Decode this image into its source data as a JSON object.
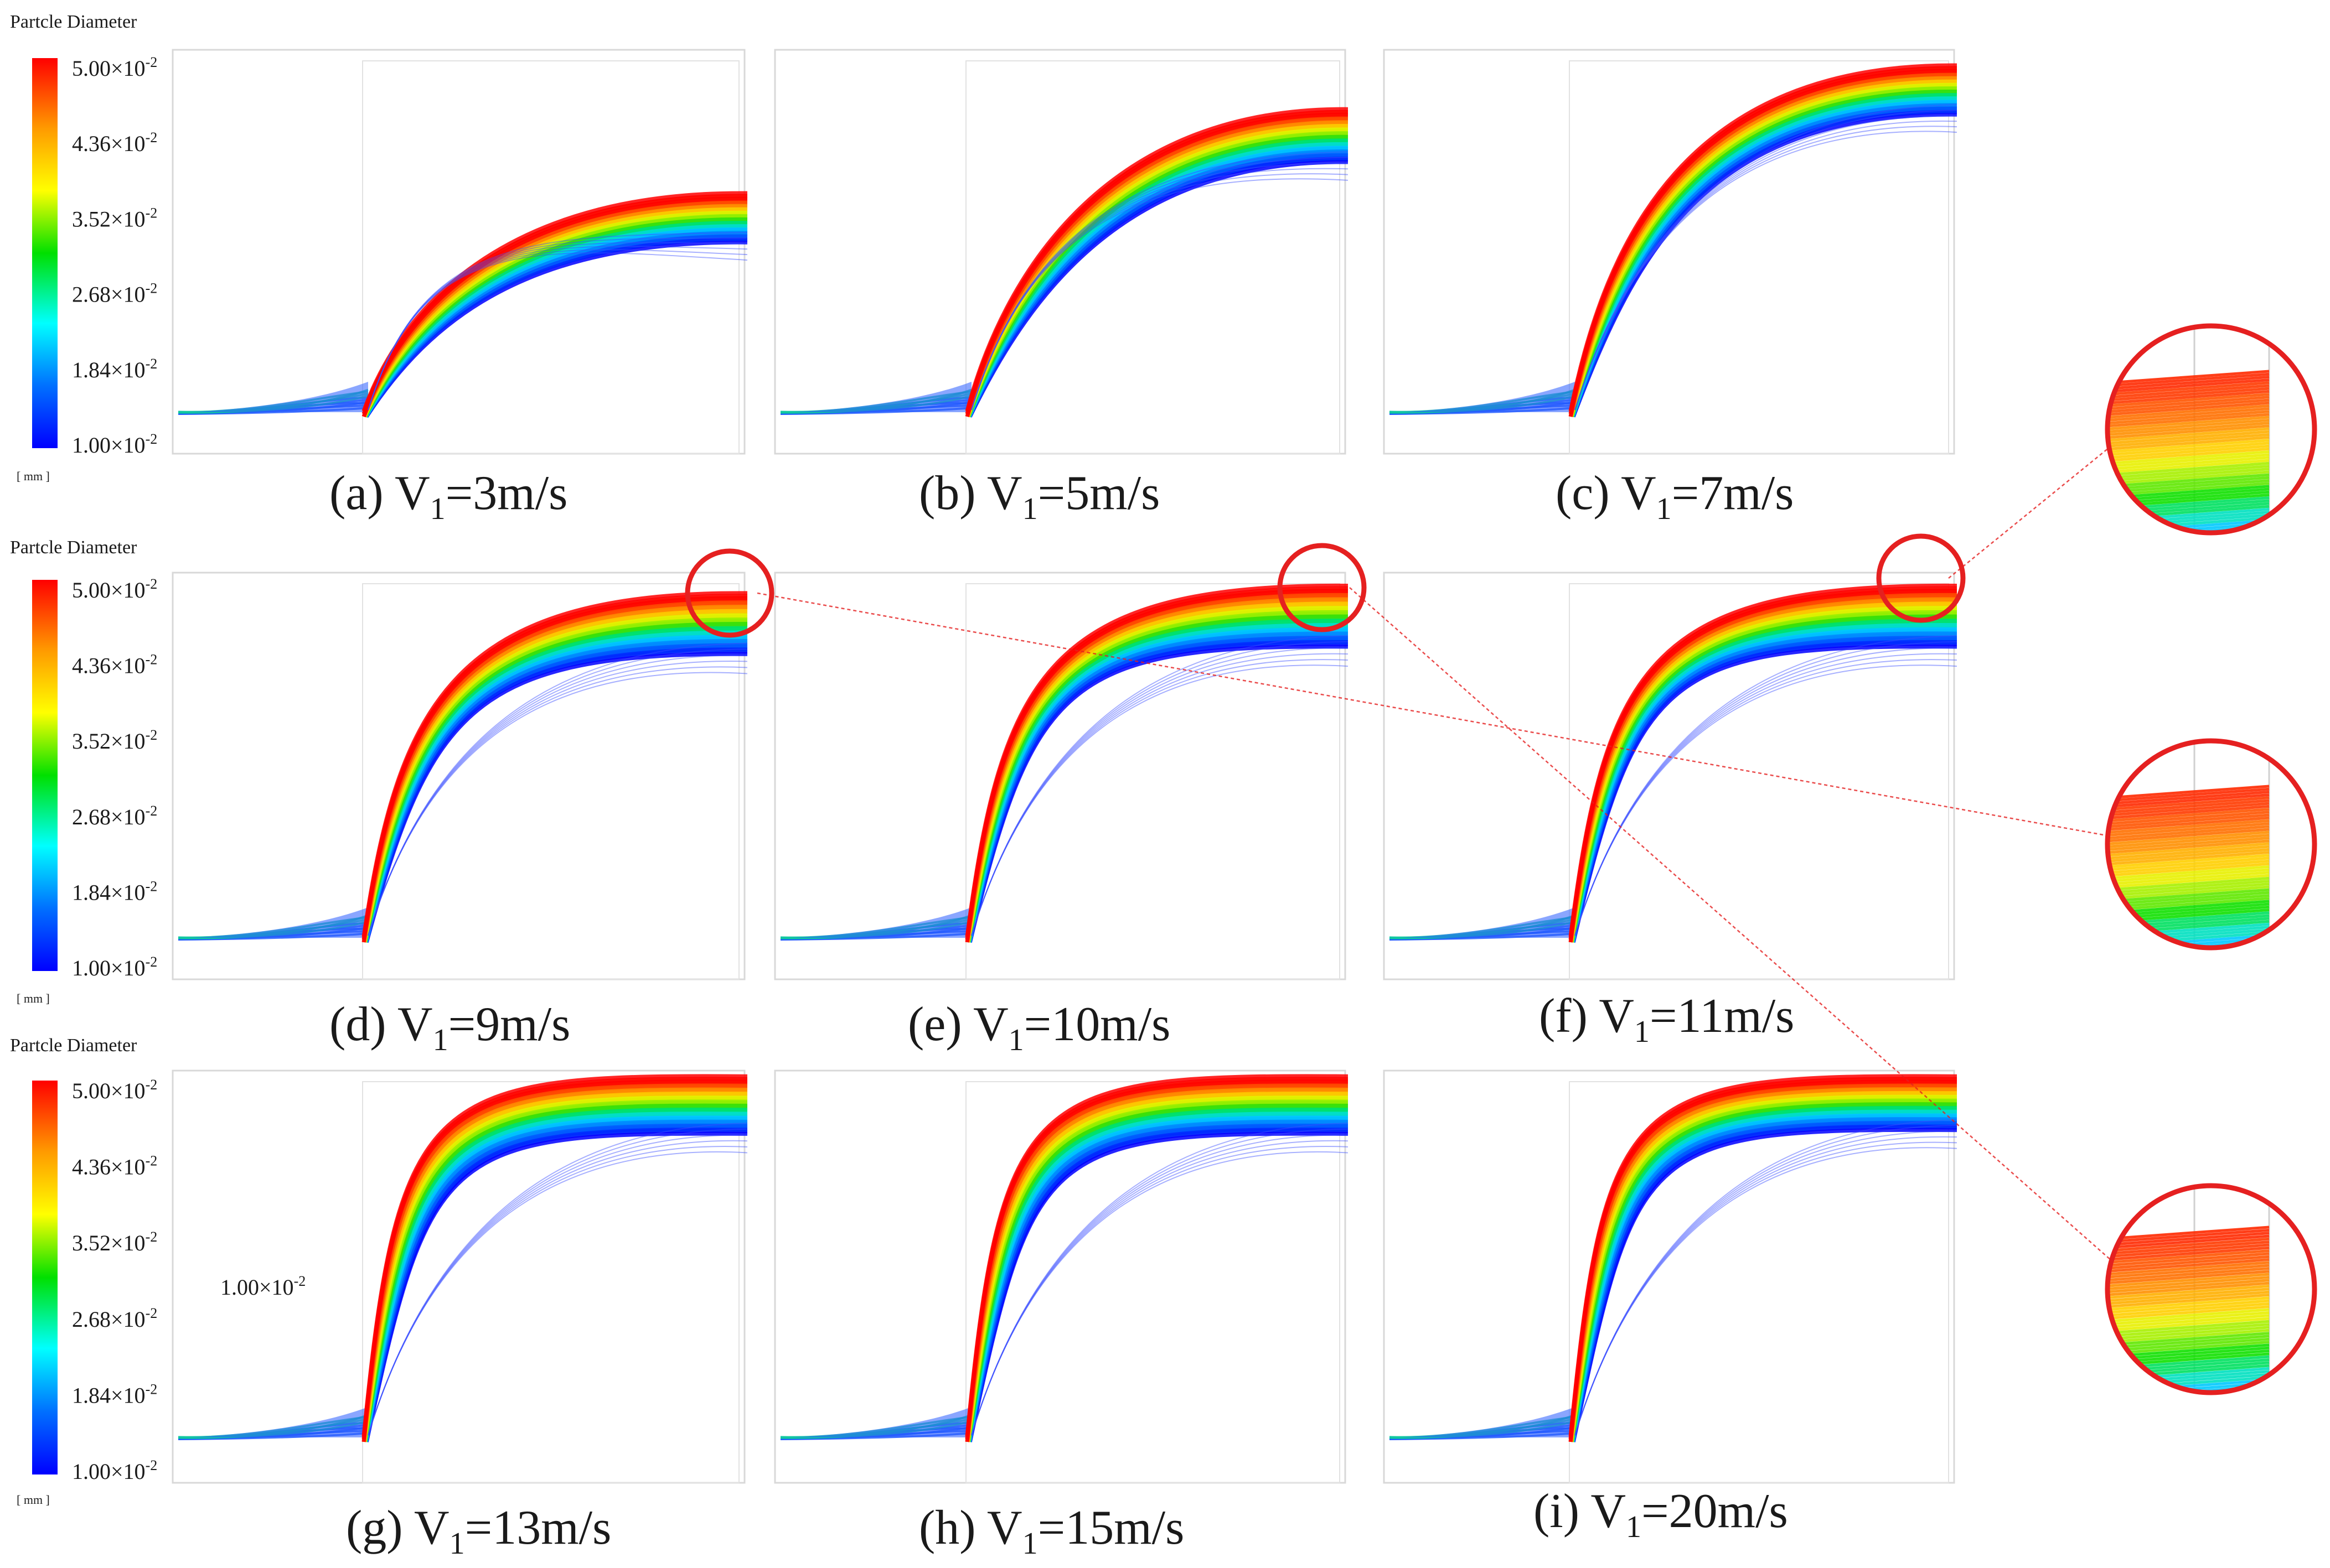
{
  "legend": {
    "title": "Partcle Diameter",
    "unit": "[ mm ]",
    "ticks": [
      {
        "mantissa": "5.00",
        "times": "×10",
        "exponent": "-2"
      },
      {
        "mantissa": "4.36",
        "times": "×10",
        "exponent": "-2"
      },
      {
        "mantissa": "3.52",
        "times": "×10",
        "exponent": "-2"
      },
      {
        "mantissa": "2.68",
        "times": "×10",
        "exponent": "-2"
      },
      {
        "mantissa": "1.84",
        "times": "×10",
        "exponent": "-2"
      },
      {
        "mantissa": "1.00",
        "times": "×10",
        "exponent": "-2"
      }
    ],
    "colors": [
      "#ff0000",
      "#ff9a00",
      "#ffff00",
      "#00e000",
      "#00ffff",
      "#0070ff",
      "#0000ff"
    ]
  },
  "stray_label": {
    "mantissa": "1.00",
    "times": "×10",
    "exponent": "-2"
  },
  "panels": [
    {
      "id": "a",
      "prefix": "(a) V",
      "sub": "1",
      "value": "=3m/s"
    },
    {
      "id": "b",
      "prefix": "(b) V",
      "sub": "1",
      "value": "=5m/s"
    },
    {
      "id": "c",
      "prefix": "(c) V",
      "sub": "1",
      "value": "=7m/s"
    },
    {
      "id": "d",
      "prefix": "(d) V",
      "sub": "1",
      "value": "=9m/s"
    },
    {
      "id": "e",
      "prefix": "(e) V",
      "sub": "1",
      "value": "=10m/s"
    },
    {
      "id": "f",
      "prefix": "(f) V",
      "sub": "1",
      "value": "=11m/s"
    },
    {
      "id": "g",
      "prefix": "(g) V",
      "sub": "1",
      "value": "=13m/s"
    },
    {
      "id": "h",
      "prefix": "(h) V",
      "sub": "1",
      "value": "=15m/s"
    },
    {
      "id": "i",
      "prefix": "(i) V",
      "sub": "1",
      "value": "=20m/s"
    }
  ],
  "highlight_color": "#e52020"
}
